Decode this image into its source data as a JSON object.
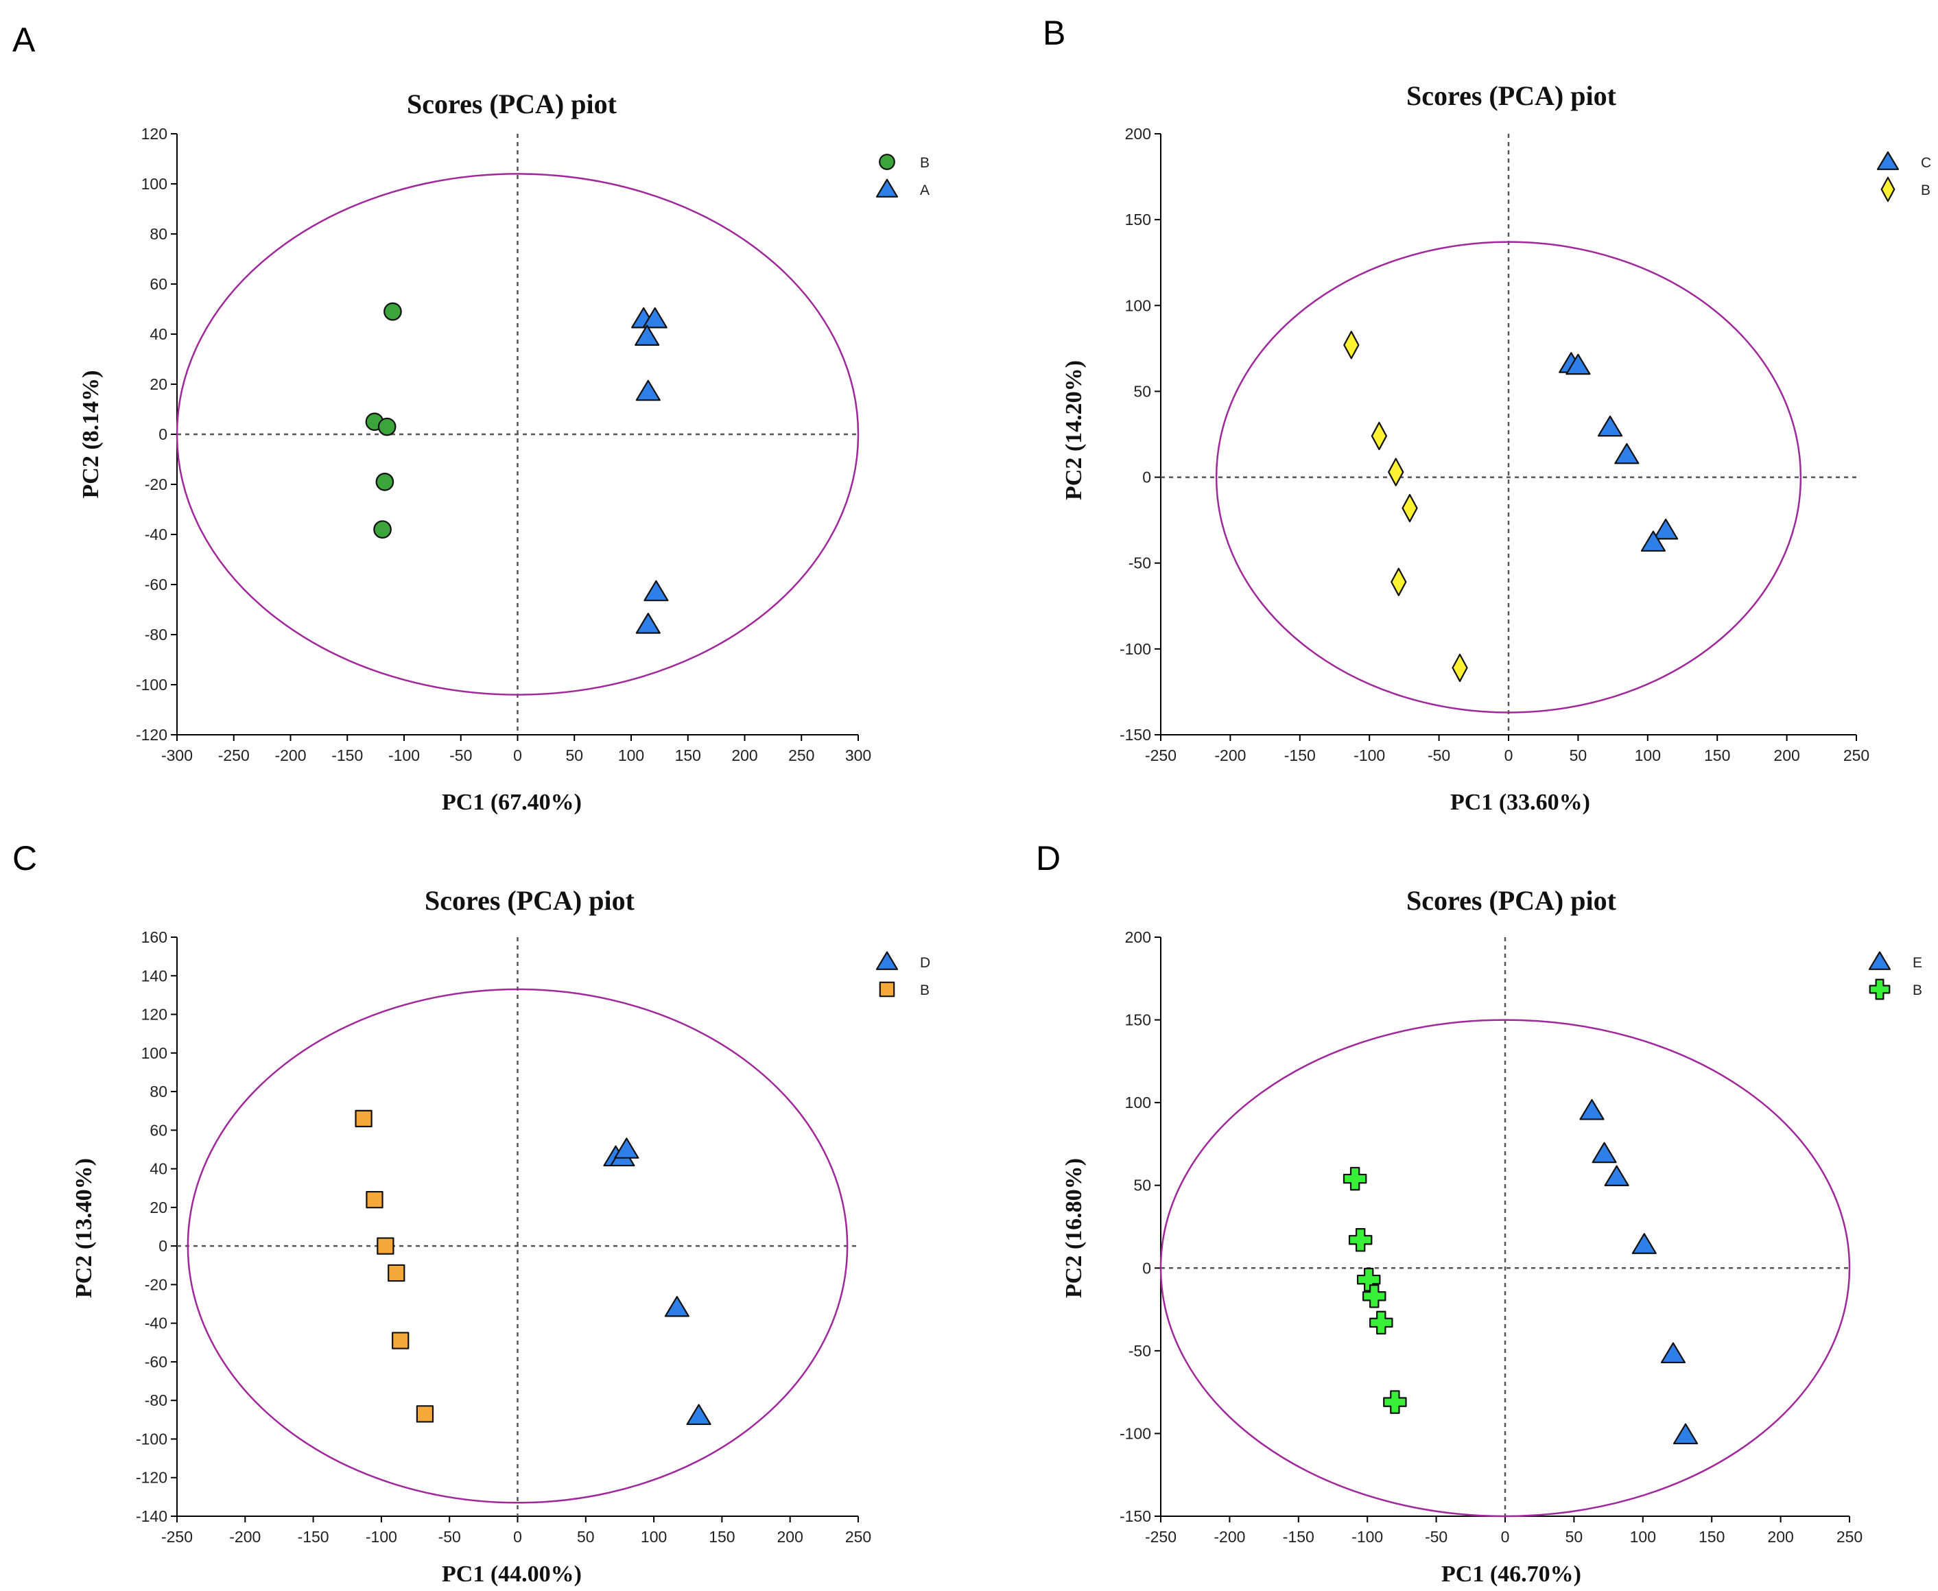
{
  "figure": {
    "panels": [
      "A",
      "B",
      "C",
      "D"
    ]
  },
  "colors": {
    "ellipse": "#A0289A",
    "green_circle": "#3BA53B",
    "blue_triangle": "#2E7FE8",
    "yellow_diamond": "#FFF233",
    "orange_square": "#F5A93A",
    "lime_cross": "#39F039"
  },
  "chart_data": [
    {
      "panel": "A",
      "type": "scatter",
      "title": "Scores (PCA) piot",
      "xlabel": "PC1 (67.40%)",
      "ylabel": "PC2 (8.14%)",
      "xlim": [
        -300,
        300
      ],
      "ylim": [
        -120,
        120
      ],
      "xticks": [
        -300,
        -250,
        -200,
        -150,
        -100,
        -50,
        0,
        50,
        100,
        150,
        200,
        250,
        300
      ],
      "yticks": [
        120,
        100,
        80,
        60,
        40,
        20,
        0,
        -20,
        -40,
        -60,
        -80,
        -100,
        -120
      ],
      "ellipse": {
        "rx": 300,
        "ry": 104
      },
      "legend_position": "top-right",
      "series": [
        {
          "name": "B",
          "marker": "circle",
          "color": "#3BA53B",
          "points": [
            [
              -110,
              49
            ],
            [
              -126,
              5
            ],
            [
              -115,
              3
            ],
            [
              -117,
              -19
            ],
            [
              -119,
              -38
            ]
          ]
        },
        {
          "name": "A",
          "marker": "triangle",
          "color": "#2E7FE8",
          "points": [
            [
              111,
              46
            ],
            [
              121,
              46
            ],
            [
              114,
              39
            ],
            [
              115,
              17
            ],
            [
              122,
              -63
            ],
            [
              115,
              -76
            ]
          ]
        }
      ]
    },
    {
      "panel": "B",
      "type": "scatter",
      "title": "Scores (PCA) piot",
      "xlabel": "PC1 (33.60%)",
      "ylabel": "PC2 (14.20%)",
      "xlim": [
        -250,
        250
      ],
      "ylim": [
        -150,
        200
      ],
      "xticks": [
        -250,
        -200,
        -150,
        -100,
        -50,
        0,
        50,
        100,
        150,
        200,
        250
      ],
      "yticks": [
        200,
        150,
        100,
        50,
        0,
        -50,
        -100,
        -150
      ],
      "ellipse": {
        "rx": 210,
        "ry": 137
      },
      "legend_position": "top-right",
      "series": [
        {
          "name": "C",
          "marker": "triangle",
          "color": "#2E7FE8",
          "points": [
            [
              45,
              66
            ],
            [
              50,
              65
            ],
            [
              73,
              29
            ],
            [
              85,
              13
            ],
            [
              113,
              -31
            ],
            [
              104,
              -38
            ]
          ]
        },
        {
          "name": "B",
          "marker": "diamond",
          "color": "#FFF233",
          "points": [
            [
              -113,
              77
            ],
            [
              -93,
              24
            ],
            [
              -81,
              3
            ],
            [
              -71,
              -18
            ],
            [
              -79,
              -61
            ],
            [
              -35,
              -111
            ]
          ]
        }
      ]
    },
    {
      "panel": "C",
      "type": "scatter",
      "title": "Scores (PCA) piot",
      "xlabel": "PC1 (44.00%)",
      "ylabel": "PC2 (13.40%)",
      "xlim": [
        -250,
        250
      ],
      "ylim": [
        -140,
        160
      ],
      "xticks": [
        -250,
        -200,
        -150,
        -100,
        -50,
        0,
        50,
        100,
        150,
        200,
        250
      ],
      "yticks": [
        160,
        140,
        120,
        100,
        80,
        60,
        40,
        20,
        0,
        -20,
        -40,
        -60,
        -80,
        -100,
        -120,
        -140
      ],
      "ellipse": {
        "rx": 242,
        "ry": 133
      },
      "legend_position": "top-right",
      "series": [
        {
          "name": "D",
          "marker": "triangle",
          "color": "#2E7FE8",
          "points": [
            [
              72,
              46
            ],
            [
              77,
              46
            ],
            [
              80,
              50
            ],
            [
              117,
              -32
            ],
            [
              133,
              -88
            ]
          ]
        },
        {
          "name": "B",
          "marker": "square",
          "color": "#F5A93A",
          "points": [
            [
              -113,
              66
            ],
            [
              -105,
              24
            ],
            [
              -97,
              0
            ],
            [
              -89,
              -14
            ],
            [
              -86,
              -49
            ],
            [
              -68,
              -87
            ]
          ]
        }
      ]
    },
    {
      "panel": "D",
      "type": "scatter",
      "title": "Scores (PCA) piot",
      "xlabel": "PC1 (46.70%)",
      "ylabel": "PC2 (16.80%)",
      "xlim": [
        -250,
        250
      ],
      "ylim": [
        -150,
        200
      ],
      "xticks": [
        -250,
        -200,
        -150,
        -100,
        -50,
        0,
        50,
        100,
        150,
        200,
        250
      ],
      "yticks": [
        200,
        150,
        100,
        50,
        0,
        -50,
        -100,
        -150
      ],
      "ellipse": {
        "rx": 250,
        "ry": 150
      },
      "legend_position": "top-right",
      "series": [
        {
          "name": "E",
          "marker": "triangle",
          "color": "#2E7FE8",
          "points": [
            [
              63,
              95
            ],
            [
              72,
              69
            ],
            [
              81,
              55
            ],
            [
              101,
              14
            ],
            [
              122,
              -52
            ],
            [
              131,
              -101
            ]
          ]
        },
        {
          "name": "B",
          "marker": "cross",
          "color": "#39F039",
          "points": [
            [
              -109,
              54
            ],
            [
              -105,
              17
            ],
            [
              -99,
              -7
            ],
            [
              -95,
              -17
            ],
            [
              -90,
              -33
            ],
            [
              -80,
              -81
            ]
          ]
        }
      ]
    }
  ]
}
